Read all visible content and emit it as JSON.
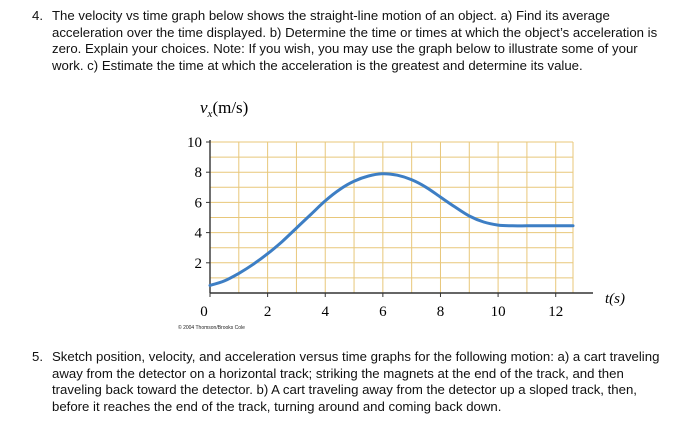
{
  "problem4": {
    "number": "4.",
    "text": "The velocity vs time graph below shows the straight-line motion of an object. a) Find its average acceleration over the time displayed. b) Determine the time or times at which the object’s acceleration is zero. Explain your choices. Note: If you wish, you may use the graph below to illustrate some of your work. c) Estimate the time at which the acceleration is the greatest and determine its value."
  },
  "chart_data": {
    "type": "line",
    "ylabel": "vx(m/s)",
    "ylabel_main": "v",
    "ylabel_sub": "x",
    "ylabel_unit": "(m/s)",
    "xlabel": "t(s)",
    "xlim": [
      0,
      12.6
    ],
    "ylim": [
      0,
      10
    ],
    "x_ticks": [
      "0",
      "2",
      "4",
      "6",
      "8",
      "10",
      "12"
    ],
    "x_tick_values": [
      0,
      2,
      4,
      6,
      8,
      10,
      12
    ],
    "y_ticks": [
      "2",
      "4",
      "6",
      "8",
      "10"
    ],
    "y_tick_values": [
      2,
      4,
      6,
      8,
      10
    ],
    "grid": true,
    "line_color": "#3d7ec4",
    "grid_color": "#e8c77a",
    "series": [
      {
        "x": [
          0,
          0.5,
          1,
          1.5,
          2,
          2.5,
          3,
          3.5,
          4,
          4.5,
          5,
          5.5,
          6,
          6.5,
          7,
          7.5,
          8,
          8.5,
          9,
          9.5,
          10,
          10.5,
          11,
          11.5,
          12,
          12.6
        ],
        "values": [
          0.5,
          0.8,
          1.3,
          1.9,
          2.6,
          3.4,
          4.3,
          5.2,
          6.1,
          6.85,
          7.4,
          7.75,
          7.9,
          7.8,
          7.5,
          7.0,
          6.35,
          5.7,
          5.1,
          4.7,
          4.5,
          4.45,
          4.45,
          4.45,
          4.45,
          4.45
        ]
      }
    ]
  },
  "copyright": "© 2004 Thomson/Brooks Cole",
  "problem5": {
    "number": "5.",
    "text": "Sketch position, velocity, and acceleration versus time graphs for the following motion: a) a cart traveling away from the detector on a horizontal track; striking the magnets at the end of the track, and then traveling back toward the detector. b) A cart traveling away from the detector up a sloped track, then, before it reaches the end of the track, turning around and coming back down."
  }
}
